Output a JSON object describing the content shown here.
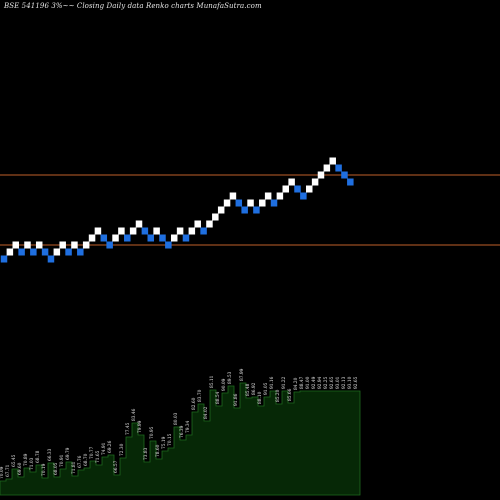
{
  "header": {
    "title": "BSE 541196  3%~~ Closing Daily data  Renko  charts MunafaSutra.com"
  },
  "colors": {
    "background": "#000000",
    "up_brick": "#ffffff",
    "down_brick": "#1f6fe0",
    "support_line": "#c0602a",
    "volume_fill": "#062806",
    "volume_stroke": "#1e6a1e",
    "label_text": "#e6e6e6"
  },
  "chart_data": [
    {
      "type": "renko",
      "brick_colors": {
        "up": "white",
        "down": "blue"
      },
      "horizontal_lines": [
        81.0,
        73.0
      ],
      "bricks": [
        {
          "level": 71.4,
          "dir": "down"
        },
        {
          "level": 72.2,
          "dir": "up"
        },
        {
          "level": 73.0,
          "dir": "up"
        },
        {
          "level": 72.2,
          "dir": "down"
        },
        {
          "level": 73.0,
          "dir": "up"
        },
        {
          "level": 72.2,
          "dir": "down"
        },
        {
          "level": 73.0,
          "dir": "up"
        },
        {
          "level": 72.2,
          "dir": "down"
        },
        {
          "level": 71.4,
          "dir": "down"
        },
        {
          "level": 72.2,
          "dir": "up"
        },
        {
          "level": 73.0,
          "dir": "up"
        },
        {
          "level": 72.2,
          "dir": "down"
        },
        {
          "level": 73.0,
          "dir": "up"
        },
        {
          "level": 72.2,
          "dir": "down"
        },
        {
          "level": 73.0,
          "dir": "up"
        },
        {
          "level": 73.8,
          "dir": "up"
        },
        {
          "level": 74.6,
          "dir": "up"
        },
        {
          "level": 73.8,
          "dir": "down"
        },
        {
          "level": 73.0,
          "dir": "down"
        },
        {
          "level": 73.8,
          "dir": "up"
        },
        {
          "level": 74.6,
          "dir": "up"
        },
        {
          "level": 73.8,
          "dir": "down"
        },
        {
          "level": 74.6,
          "dir": "up"
        },
        {
          "level": 75.4,
          "dir": "up"
        },
        {
          "level": 74.6,
          "dir": "down"
        },
        {
          "level": 73.8,
          "dir": "down"
        },
        {
          "level": 74.6,
          "dir": "up"
        },
        {
          "level": 73.8,
          "dir": "down"
        },
        {
          "level": 73.0,
          "dir": "down"
        },
        {
          "level": 73.8,
          "dir": "up"
        },
        {
          "level": 74.6,
          "dir": "up"
        },
        {
          "level": 73.8,
          "dir": "down"
        },
        {
          "level": 74.6,
          "dir": "up"
        },
        {
          "level": 75.4,
          "dir": "up"
        },
        {
          "level": 74.6,
          "dir": "down"
        },
        {
          "level": 75.4,
          "dir": "up"
        },
        {
          "level": 76.2,
          "dir": "up"
        },
        {
          "level": 77.0,
          "dir": "up"
        },
        {
          "level": 77.8,
          "dir": "up"
        },
        {
          "level": 78.6,
          "dir": "up"
        },
        {
          "level": 77.8,
          "dir": "down"
        },
        {
          "level": 77.0,
          "dir": "down"
        },
        {
          "level": 77.8,
          "dir": "up"
        },
        {
          "level": 77.0,
          "dir": "down"
        },
        {
          "level": 77.8,
          "dir": "up"
        },
        {
          "level": 78.6,
          "dir": "up"
        },
        {
          "level": 77.8,
          "dir": "down"
        },
        {
          "level": 78.6,
          "dir": "up"
        },
        {
          "level": 79.4,
          "dir": "up"
        },
        {
          "level": 80.2,
          "dir": "up"
        },
        {
          "level": 79.4,
          "dir": "down"
        },
        {
          "level": 78.6,
          "dir": "down"
        },
        {
          "level": 79.4,
          "dir": "up"
        },
        {
          "level": 80.2,
          "dir": "up"
        },
        {
          "level": 81.0,
          "dir": "up"
        },
        {
          "level": 81.8,
          "dir": "up"
        },
        {
          "level": 82.6,
          "dir": "up"
        },
        {
          "level": 81.8,
          "dir": "down"
        },
        {
          "level": 81.0,
          "dir": "down"
        },
        {
          "level": 80.2,
          "dir": "down"
        }
      ],
      "volume_labels": [
        "70.09",
        "67.71",
        "65.45",
        "69.60",
        "70.89",
        "71.03",
        "68.78",
        "70.19",
        "66.33",
        "68.05",
        "70.91",
        "69.79",
        "71.81",
        "67.76",
        "68.70",
        "70.77",
        "71.65",
        "74.91",
        "69.26",
        "66.57",
        "72.30",
        "77.45",
        "83.46",
        "79.99",
        "73.83",
        "70.95",
        "78.60",
        "75.19",
        "70.15",
        "80.03",
        "76.39",
        "79.34",
        "82.60",
        "83.70",
        "84.02",
        "85.11",
        "88.54",
        "90.09",
        "89.53",
        "91.86",
        "87.99",
        "85.48",
        "86.92",
        "88.10",
        "91.05",
        "91.16",
        "85.20",
        "91.22",
        "85.66",
        "84.20",
        "88.47",
        "91.00",
        "92.49",
        "92.94",
        "92.25",
        "92.65",
        "93.01",
        "92.13",
        "93.10",
        "92.65"
      ],
      "volume_values": [
        14,
        16,
        26,
        18,
        27,
        23,
        30,
        17,
        32,
        18,
        26,
        33,
        19,
        25,
        27,
        34,
        30,
        38,
        40,
        20,
        37,
        58,
        72,
        60,
        33,
        54,
        36,
        44,
        47,
        68,
        55,
        60,
        83,
        91,
        74,
        105,
        89,
        102,
        109,
        87,
        112,
        97,
        98,
        89,
        98,
        104,
        91,
        104,
        92,
        103,
        104,
        104,
        104,
        104,
        104,
        104,
        104,
        104,
        104,
        104
      ]
    }
  ]
}
